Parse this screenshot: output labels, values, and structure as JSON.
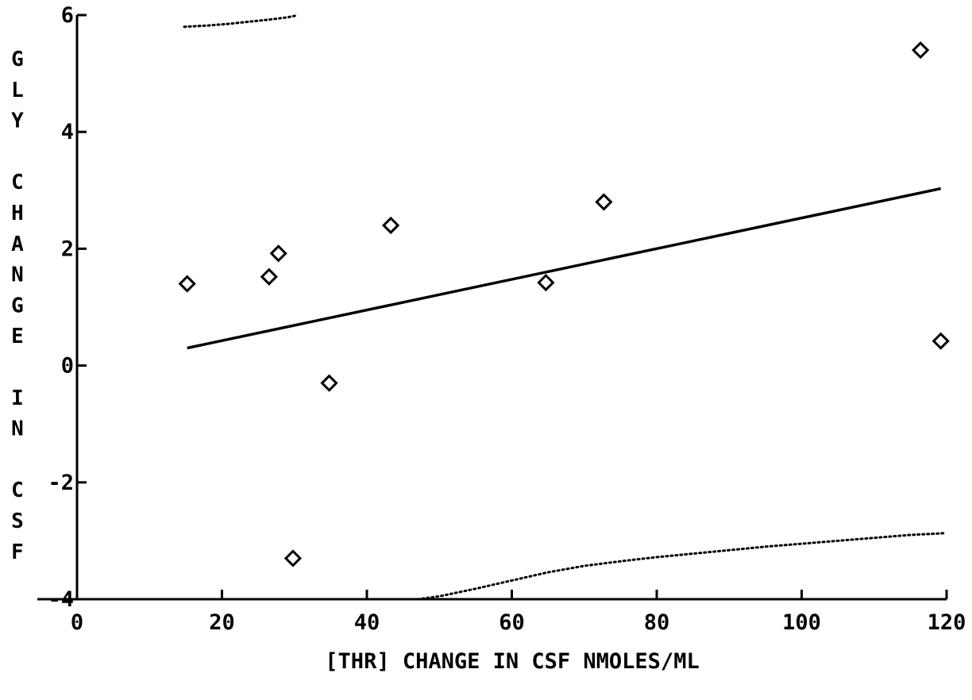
{
  "chart_data": {
    "type": "scatter",
    "title": "",
    "xlabel": "[THR] CHANGE IN CSF NMOLES/ML",
    "ylabel": "GLY CHANGE IN CSF",
    "ylabel_lines": [
      "G",
      "L",
      "Y",
      "",
      "C",
      "H",
      "A",
      "N",
      "G",
      "E",
      "",
      "I",
      "N",
      "",
      "C",
      "S",
      "F"
    ],
    "xlim": [
      0,
      120
    ],
    "ylim": [
      -4,
      6
    ],
    "x_ticks": [
      "0",
      "20",
      "40",
      "60",
      "80",
      "100",
      "120"
    ],
    "x_tick_values": [
      0,
      20,
      40,
      60,
      80,
      100,
      120
    ],
    "y_ticks": [
      "-4",
      "-2",
      "0",
      "2",
      "4",
      "6"
    ],
    "y_tick_values": [
      -4,
      -2,
      0,
      2,
      4,
      6
    ],
    "grid": false,
    "marker": "diamond",
    "points": [
      {
        "x": 15.2,
        "y": 1.4
      },
      {
        "x": 26.5,
        "y": 1.52
      },
      {
        "x": 27.8,
        "y": 1.92
      },
      {
        "x": 29.8,
        "y": -3.3
      },
      {
        "x": 34.8,
        "y": -0.3
      },
      {
        "x": 43.3,
        "y": 2.4
      },
      {
        "x": 64.7,
        "y": 1.42
      },
      {
        "x": 72.7,
        "y": 2.8
      },
      {
        "x": 116.4,
        "y": 5.4
      },
      {
        "x": 119.2,
        "y": 0.42
      }
    ],
    "fit_line": {
      "x": [
        15.2,
        119.2
      ],
      "y": [
        0.3,
        3.03
      ]
    },
    "upper_band": {
      "x": [
        14.8,
        18,
        21,
        24,
        27,
        29,
        30.2
      ],
      "y": [
        5.8,
        5.82,
        5.85,
        5.89,
        5.93,
        5.96,
        5.99
      ]
    },
    "lower_band": {
      "x": [
        47,
        50,
        55,
        60,
        65,
        70,
        75,
        80,
        85,
        90,
        95,
        100,
        105,
        110,
        115,
        119.8
      ],
      "y": [
        -4.0,
        -3.95,
        -3.82,
        -3.68,
        -3.54,
        -3.43,
        -3.35,
        -3.28,
        -3.22,
        -3.16,
        -3.1,
        -3.05,
        -3.0,
        -2.95,
        -2.9,
        -2.87
      ]
    }
  }
}
